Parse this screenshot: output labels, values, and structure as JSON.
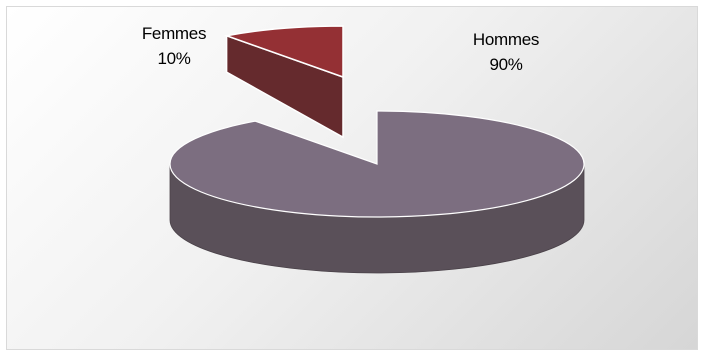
{
  "chart_data": {
    "type": "pie",
    "style": "3d-exploded",
    "title": "",
    "categories": [
      "Hommes",
      "Femmes"
    ],
    "values": [
      90,
      10
    ],
    "slices": [
      {
        "name": "Hommes",
        "value": 90,
        "label": "90%",
        "color": "#7c6e80"
      },
      {
        "name": "Femmes",
        "value": 10,
        "label": "10%",
        "color": "#943034"
      }
    ],
    "legend": "none"
  },
  "colors": {
    "hommes_top": "#7c6e80",
    "hommes_side": "#5a5059",
    "femmes_top": "#943034",
    "femmes_side": "#652a2d"
  }
}
